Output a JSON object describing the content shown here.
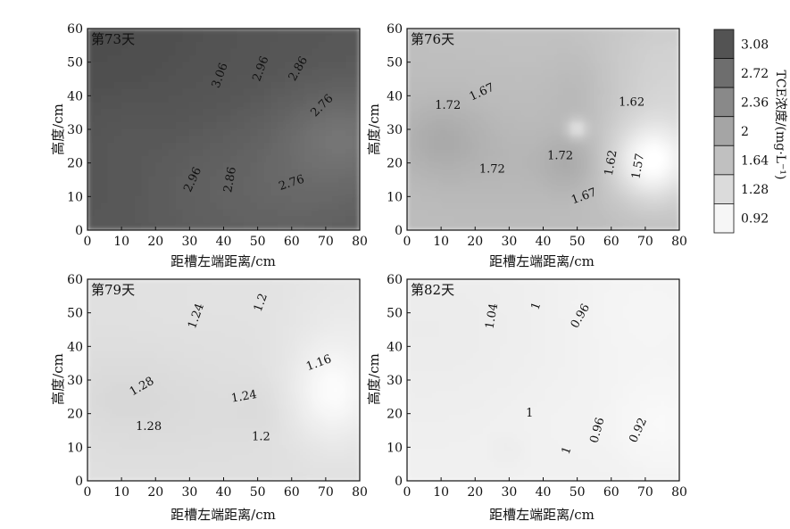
{
  "chart_data": {
    "type": "contour",
    "shared_axes": {
      "xlabel": "距槽左端距离/cm",
      "ylabel": "高度/cm",
      "xlim": [
        0,
        80
      ],
      "ylim": [
        0,
        60
      ],
      "xticks": [
        0,
        10,
        20,
        30,
        40,
        50,
        60,
        70,
        80
      ],
      "yticks": [
        0,
        10,
        20,
        30,
        40,
        50,
        60
      ]
    },
    "colorbar": {
      "title": "TCE浓度/(mg·L⁻¹)",
      "ticks": [
        3.08,
        2.72,
        2.36,
        2,
        1.64,
        1.28,
        0.92
      ],
      "range": [
        0.8,
        3.2
      ],
      "colors": {
        "low": "#ffffff",
        "high": "#4a4a4a"
      }
    },
    "panels": [
      {
        "title": "第73天",
        "base_value": 3.0,
        "blobs": [
          {
            "x": 0,
            "y": 60,
            "sx": 38,
            "sy": 30,
            "amp": 0.15
          },
          {
            "x": 75,
            "y": 28,
            "sx": 14,
            "sy": 10,
            "amp": -0.32
          },
          {
            "x": 60,
            "y": 10,
            "sx": 22,
            "sy": 14,
            "amp": -0.15
          },
          {
            "x": 35,
            "y": 18,
            "sx": 14,
            "sy": 14,
            "amp": -0.06
          },
          {
            "x": 10,
            "y": 28,
            "sx": 8,
            "sy": 8,
            "amp": -0.05
          }
        ],
        "labels": [
          {
            "text": "3.06",
            "x": 39,
            "y": 46,
            "rot": -70
          },
          {
            "text": "2.96",
            "x": 51,
            "y": 48,
            "rot": -70
          },
          {
            "text": "2.86",
            "x": 62,
            "y": 48,
            "rot": -60
          },
          {
            "text": "2.76",
            "x": 69,
            "y": 37,
            "rot": -45
          },
          {
            "text": "2.96",
            "x": 31,
            "y": 15,
            "rot": -65
          },
          {
            "text": "2.86",
            "x": 42,
            "y": 15,
            "rot": -80
          },
          {
            "text": "2.76",
            "x": 60,
            "y": 14,
            "rot": -18
          }
        ]
      },
      {
        "title": "第76天",
        "base_value": 1.68,
        "blobs": [
          {
            "x": 10,
            "y": 27,
            "sx": 9,
            "sy": 8,
            "amp": 0.22
          },
          {
            "x": 48,
            "y": 20,
            "sx": 6,
            "sy": 6,
            "amp": 0.2
          },
          {
            "x": 30,
            "y": 20,
            "sx": 18,
            "sy": 10,
            "amp": 0.08
          },
          {
            "x": 50,
            "y": 30,
            "sx": 2,
            "sy": 2,
            "amp": -0.6
          },
          {
            "x": 72,
            "y": 20,
            "sx": 8,
            "sy": 8,
            "amp": -0.75
          },
          {
            "x": 78,
            "y": 40,
            "sx": 14,
            "sy": 20,
            "amp": -0.3
          },
          {
            "x": 50,
            "y": 42,
            "sx": 6,
            "sy": 9,
            "amp": 0.08
          },
          {
            "x": 40,
            "y": 58,
            "sx": 30,
            "sy": 8,
            "amp": -0.06
          }
        ],
        "labels": [
          {
            "text": "1.67",
            "x": 22,
            "y": 41,
            "rot": -25
          },
          {
            "text": "1.72",
            "x": 12,
            "y": 37,
            "rot": 0
          },
          {
            "text": "1.72",
            "x": 25,
            "y": 18,
            "rot": 0
          },
          {
            "text": "1.72",
            "x": 45,
            "y": 22,
            "rot": 0
          },
          {
            "text": "1.67",
            "x": 52,
            "y": 10,
            "rot": -20
          },
          {
            "text": "1.62",
            "x": 66,
            "y": 38,
            "rot": 0
          },
          {
            "text": "1.62",
            "x": 60,
            "y": 20,
            "rot": -80
          },
          {
            "text": "1.57",
            "x": 68,
            "y": 19,
            "rot": -80
          }
        ]
      },
      {
        "title": "第79天",
        "base_value": 1.22,
        "blobs": [
          {
            "x": 10,
            "y": 25,
            "sx": 12,
            "sy": 9,
            "amp": 0.08
          },
          {
            "x": 50,
            "y": 21,
            "sx": 5,
            "sy": 5,
            "amp": 0.05
          },
          {
            "x": 30,
            "y": 20,
            "sx": 18,
            "sy": 9,
            "amp": 0.04
          },
          {
            "x": 72,
            "y": 26,
            "sx": 8,
            "sy": 10,
            "amp": -0.3
          },
          {
            "x": 78,
            "y": 45,
            "sx": 14,
            "sy": 22,
            "amp": -0.12
          },
          {
            "x": 35,
            "y": 55,
            "sx": 20,
            "sy": 10,
            "amp": -0.03
          }
        ],
        "labels": [
          {
            "text": "1.24",
            "x": 32,
            "y": 49,
            "rot": -70
          },
          {
            "text": "1.2",
            "x": 51,
            "y": 53,
            "rot": -70
          },
          {
            "text": "1.16",
            "x": 68,
            "y": 35,
            "rot": -20
          },
          {
            "text": "1.28",
            "x": 16,
            "y": 28,
            "rot": -30
          },
          {
            "text": "1.28",
            "x": 18,
            "y": 16,
            "rot": 0
          },
          {
            "text": "1.24",
            "x": 46,
            "y": 25,
            "rot": -10
          },
          {
            "text": "1.2",
            "x": 51,
            "y": 13,
            "rot": 0
          }
        ]
      },
      {
        "title": "第82天",
        "base_value": 0.99,
        "blobs": [
          {
            "x": 5,
            "y": 45,
            "sx": 28,
            "sy": 20,
            "amp": 0.07
          },
          {
            "x": 30,
            "y": 9,
            "sx": 3,
            "sy": 3,
            "amp": 0.05
          },
          {
            "x": 75,
            "y": 16,
            "sx": 10,
            "sy": 10,
            "amp": -0.1
          },
          {
            "x": 70,
            "y": 50,
            "sx": 18,
            "sy": 16,
            "amp": -0.06
          },
          {
            "x": 45,
            "y": 18,
            "sx": 12,
            "sy": 10,
            "amp": -0.02
          }
        ],
        "labels": [
          {
            "text": "1.04",
            "x": 25,
            "y": 49,
            "rot": -80
          },
          {
            "text": "1",
            "x": 38,
            "y": 52,
            "rot": -70
          },
          {
            "text": "0.96",
            "x": 51,
            "y": 49,
            "rot": -60
          },
          {
            "text": "1",
            "x": 36,
            "y": 20,
            "rot": 0
          },
          {
            "text": "1",
            "x": 47,
            "y": 9,
            "rot": -70
          },
          {
            "text": "0.96",
            "x": 56,
            "y": 15,
            "rot": -75
          },
          {
            "text": "0.92",
            "x": 68,
            "y": 15,
            "rot": -65
          }
        ]
      }
    ]
  }
}
